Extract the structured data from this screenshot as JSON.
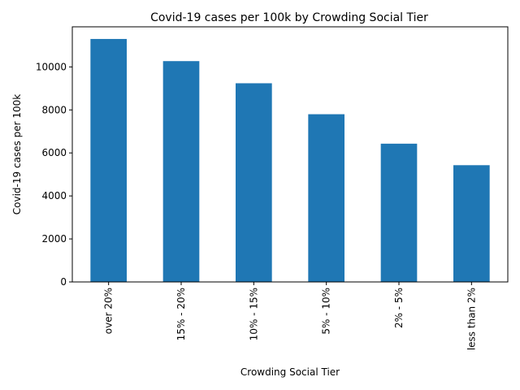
{
  "chart_data": {
    "type": "bar",
    "title": "Covid-19 cases per 100k by Crowding Social Tier",
    "xlabel": "Crowding Social Tier",
    "ylabel": "Covid-19 cases per 100k",
    "categories": [
      "over 20%",
      "15% - 20%",
      "10% - 15%",
      "5% - 10%",
      "2% - 5%",
      "less than 2%"
    ],
    "values": [
      11300,
      10270,
      9240,
      7800,
      6430,
      5430
    ],
    "ylim": [
      0,
      11865
    ],
    "yticks": [
      0,
      2000,
      4000,
      6000,
      8000,
      10000
    ],
    "ytick_labels": [
      "0",
      "2000",
      "4000",
      "6000",
      "8000",
      "10000"
    ],
    "bar_color": "#1f77b4",
    "grid": false,
    "legend": false
  }
}
